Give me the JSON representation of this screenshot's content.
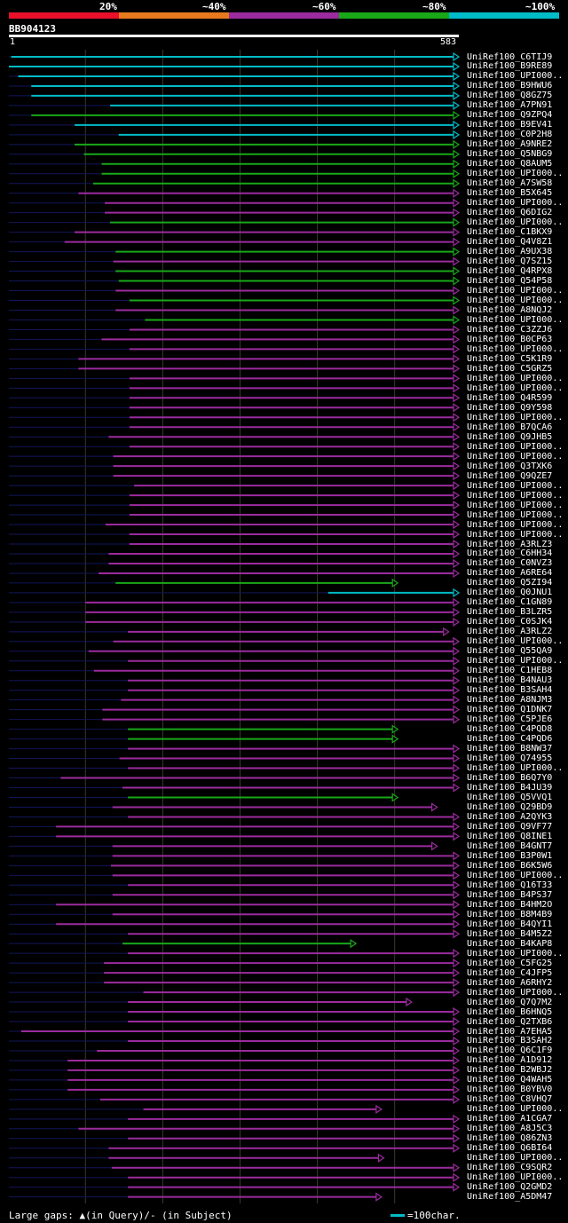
{
  "legend": {
    "labels": [
      "20%",
      "~40%",
      "~60%",
      "~80%",
      "~100%"
    ],
    "colors": [
      "#e8102a",
      "#e87a1e",
      "#9b2b9e",
      "#18a818",
      "#00bcc8"
    ]
  },
  "query": {
    "name": "BB904123",
    "start": "1",
    "end": "583"
  },
  "footer": {
    "gaps_text": "Large gaps: ▲(in Query)/- (in Subject)",
    "scale_text": "=100char."
  },
  "chart_data": {
    "type": "alignment_overview",
    "query_length": 583,
    "hits": [
      {
        "name": "UniRef100_C6TIJ9",
        "start": 4,
        "end": 583,
        "color": "#00bcc8"
      },
      {
        "name": "UniRef100_B9RE89",
        "start": 1,
        "end": 583,
        "color": "#00bcc8"
      },
      {
        "name": "UniRef100_UPI000..",
        "start": 13,
        "end": 583,
        "color": "#00bcc8"
      },
      {
        "name": "UniRef100_B9HWU6",
        "start": 30,
        "end": 583,
        "color": "#00bcc8"
      },
      {
        "name": "UniRef100_Q8GZ75",
        "start": 30,
        "end": 583,
        "color": "#00bcc8"
      },
      {
        "name": "UniRef100_A7PN91",
        "start": 132,
        "end": 583,
        "color": "#00bcc8"
      },
      {
        "name": "UniRef100_Q9ZPQ4",
        "start": 30,
        "end": 583,
        "color": "#18a818"
      },
      {
        "name": "UniRef100_B9EV41",
        "start": 86,
        "end": 583,
        "color": "#00bcc8"
      },
      {
        "name": "UniRef100_C0P2H8",
        "start": 143,
        "end": 583,
        "color": "#00bcc8"
      },
      {
        "name": "UniRef100_A9NRE2",
        "start": 86,
        "end": 583,
        "color": "#18a818"
      },
      {
        "name": "UniRef100_Q5NBG9",
        "start": 98,
        "end": 583,
        "color": "#18a818"
      },
      {
        "name": "UniRef100_Q8AUM5",
        "start": 121,
        "end": 583,
        "color": "#18a818"
      },
      {
        "name": "UniRef100_UPI000..",
        "start": 121,
        "end": 583,
        "color": "#18a818"
      },
      {
        "name": "UniRef100_A7SW58",
        "start": 110,
        "end": 583,
        "color": "#18a818"
      },
      {
        "name": "UniRef100_B5X645",
        "start": 91,
        "end": 583,
        "color": "#9b2b9e"
      },
      {
        "name": "UniRef100_UPI000..",
        "start": 125,
        "end": 583,
        "color": "#9b2b9e"
      },
      {
        "name": "UniRef100_Q6DIG2",
        "start": 125,
        "end": 583,
        "color": "#9b2b9e"
      },
      {
        "name": "UniRef100_UPI000..",
        "start": 132,
        "end": 583,
        "color": "#18a818"
      },
      {
        "name": "UniRef100_C1BKX9",
        "start": 86,
        "end": 583,
        "color": "#9b2b9e"
      },
      {
        "name": "UniRef100_Q4V8Z1",
        "start": 73,
        "end": 583,
        "color": "#9b2b9e"
      },
      {
        "name": "UniRef100_A9UX38",
        "start": 139,
        "end": 583,
        "color": "#18a818"
      },
      {
        "name": "UniRef100_Q7SZ15",
        "start": 136,
        "end": 583,
        "color": "#9b2b9e"
      },
      {
        "name": "UniRef100_Q4RPX8",
        "start": 139,
        "end": 583,
        "color": "#18a818"
      },
      {
        "name": "UniRef100_Q54P58",
        "start": 143,
        "end": 583,
        "color": "#18a818"
      },
      {
        "name": "UniRef100_UPI000..",
        "start": 139,
        "end": 583,
        "color": "#9b2b9e"
      },
      {
        "name": "UniRef100_UPI000..",
        "start": 157,
        "end": 583,
        "color": "#18a818"
      },
      {
        "name": "UniRef100_A8NQJ2",
        "start": 139,
        "end": 583,
        "color": "#9b2b9e"
      },
      {
        "name": "UniRef100_UPI000..",
        "start": 177,
        "end": 583,
        "color": "#18a818"
      },
      {
        "name": "UniRef100_C3ZZJ6",
        "start": 157,
        "end": 583,
        "color": "#9b2b9e"
      },
      {
        "name": "UniRef100_B0CP63",
        "start": 121,
        "end": 583,
        "color": "#9b2b9e"
      },
      {
        "name": "UniRef100_UPI000..",
        "start": 157,
        "end": 583,
        "color": "#9b2b9e"
      },
      {
        "name": "UniRef100_C5K1R9",
        "start": 91,
        "end": 583,
        "color": "#9b2b9e"
      },
      {
        "name": "UniRef100_C5GRZ5",
        "start": 91,
        "end": 583,
        "color": "#9b2b9e"
      },
      {
        "name": "UniRef100_UPI000..",
        "start": 157,
        "end": 583,
        "color": "#9b2b9e"
      },
      {
        "name": "UniRef100_UPI000..",
        "start": 157,
        "end": 583,
        "color": "#9b2b9e"
      },
      {
        "name": "UniRef100_Q4R599",
        "start": 157,
        "end": 583,
        "color": "#9b2b9e"
      },
      {
        "name": "UniRef100_Q9Y598",
        "start": 157,
        "end": 583,
        "color": "#9b2b9e"
      },
      {
        "name": "UniRef100_UPI000..",
        "start": 157,
        "end": 583,
        "color": "#9b2b9e"
      },
      {
        "name": "UniRef100_B7QCA6",
        "start": 157,
        "end": 583,
        "color": "#9b2b9e"
      },
      {
        "name": "UniRef100_Q9JHB5",
        "start": 130,
        "end": 583,
        "color": "#9b2b9e"
      },
      {
        "name": "UniRef100_UPI000..",
        "start": 157,
        "end": 583,
        "color": "#9b2b9e"
      },
      {
        "name": "UniRef100_UPI000..",
        "start": 136,
        "end": 583,
        "color": "#9b2b9e"
      },
      {
        "name": "UniRef100_Q3TXK6",
        "start": 136,
        "end": 583,
        "color": "#9b2b9e"
      },
      {
        "name": "UniRef100_Q9QZE7",
        "start": 136,
        "end": 583,
        "color": "#9b2b9e"
      },
      {
        "name": "UniRef100_UPI000..",
        "start": 163,
        "end": 583,
        "color": "#9b2b9e"
      },
      {
        "name": "UniRef100_UPI000..",
        "start": 157,
        "end": 583,
        "color": "#9b2b9e"
      },
      {
        "name": "UniRef100_UPI000..",
        "start": 157,
        "end": 583,
        "color": "#9b2b9e"
      },
      {
        "name": "UniRef100_UPI000..",
        "start": 157,
        "end": 583,
        "color": "#9b2b9e"
      },
      {
        "name": "UniRef100_UPI000..",
        "start": 126,
        "end": 583,
        "color": "#9b2b9e"
      },
      {
        "name": "UniRef100_UPI000..",
        "start": 157,
        "end": 583,
        "color": "#9b2b9e"
      },
      {
        "name": "UniRef100_A3RLZ3",
        "start": 157,
        "end": 583,
        "color": "#9b2b9e"
      },
      {
        "name": "UniRef100_C6HH34",
        "start": 130,
        "end": 583,
        "color": "#9b2b9e"
      },
      {
        "name": "UniRef100_C0NVZ3",
        "start": 130,
        "end": 583,
        "color": "#9b2b9e"
      },
      {
        "name": "UniRef100_A6RE64",
        "start": 117,
        "end": 583,
        "color": "#9b2b9e"
      },
      {
        "name": "UniRef100_Q5ZI94",
        "start": 139,
        "end": 504,
        "color": "#18a818"
      },
      {
        "name": "UniRef100_Q0JNU1",
        "start": 414,
        "end": 583,
        "color": "#00bcc8"
      },
      {
        "name": "UniRef100_C1GN89",
        "start": 100,
        "end": 583,
        "color": "#9b2b9e"
      },
      {
        "name": "UniRef100_B3LZR5",
        "start": 100,
        "end": 583,
        "color": "#9b2b9e"
      },
      {
        "name": "UniRef100_C0SJK4",
        "start": 100,
        "end": 583,
        "color": "#9b2b9e"
      },
      {
        "name": "UniRef100_A3RLZ2",
        "start": 155,
        "end": 570,
        "color": "#9b2b9e"
      },
      {
        "name": "UniRef100_UPI000..",
        "start": 136,
        "end": 583,
        "color": "#9b2b9e"
      },
      {
        "name": "UniRef100_Q55QA9",
        "start": 104,
        "end": 583,
        "color": "#9b2b9e"
      },
      {
        "name": "UniRef100_UPI000..",
        "start": 155,
        "end": 583,
        "color": "#9b2b9e"
      },
      {
        "name": "UniRef100_C1HEB8",
        "start": 111,
        "end": 583,
        "color": "#9b2b9e"
      },
      {
        "name": "UniRef100_B4NAU3",
        "start": 155,
        "end": 583,
        "color": "#9b2b9e"
      },
      {
        "name": "UniRef100_B3SAH4",
        "start": 155,
        "end": 583,
        "color": "#9b2b9e"
      },
      {
        "name": "UniRef100_A8NJM3",
        "start": 146,
        "end": 583,
        "color": "#9b2b9e"
      },
      {
        "name": "UniRef100_Q1DNK7",
        "start": 122,
        "end": 583,
        "color": "#9b2b9e"
      },
      {
        "name": "UniRef100_C5PJE6",
        "start": 122,
        "end": 583,
        "color": "#9b2b9e"
      },
      {
        "name": "UniRef100_C4PQD8",
        "start": 155,
        "end": 504,
        "color": "#18a818"
      },
      {
        "name": "UniRef100_C4PQD6",
        "start": 155,
        "end": 504,
        "color": "#18a818"
      },
      {
        "name": "UniRef100_B8NW37",
        "start": 155,
        "end": 583,
        "color": "#9b2b9e"
      },
      {
        "name": "UniRef100_Q74955",
        "start": 144,
        "end": 583,
        "color": "#9b2b9e"
      },
      {
        "name": "UniRef100_UPI000..",
        "start": 155,
        "end": 583,
        "color": "#9b2b9e"
      },
      {
        "name": "UniRef100_B6Q7Y0",
        "start": 68,
        "end": 583,
        "color": "#9b2b9e"
      },
      {
        "name": "UniRef100_B4JU39",
        "start": 148,
        "end": 583,
        "color": "#9b2b9e"
      },
      {
        "name": "UniRef100_Q5VVQ1",
        "start": 155,
        "end": 504,
        "color": "#18a818"
      },
      {
        "name": "UniRef100_Q29BD9",
        "start": 135,
        "end": 555,
        "color": "#9b2b9e"
      },
      {
        "name": "UniRef100_A2QYK3",
        "start": 155,
        "end": 583,
        "color": "#9b2b9e"
      },
      {
        "name": "UniRef100_Q9VF77",
        "start": 62,
        "end": 583,
        "color": "#9b2b9e"
      },
      {
        "name": "UniRef100_Q8INE1",
        "start": 62,
        "end": 583,
        "color": "#9b2b9e"
      },
      {
        "name": "UniRef100_B4GNT7",
        "start": 135,
        "end": 555,
        "color": "#9b2b9e"
      },
      {
        "name": "UniRef100_B3P0W1",
        "start": 135,
        "end": 583,
        "color": "#9b2b9e"
      },
      {
        "name": "UniRef100_B6K5W6",
        "start": 133,
        "end": 583,
        "color": "#9b2b9e"
      },
      {
        "name": "UniRef100_UPI000..",
        "start": 135,
        "end": 583,
        "color": "#9b2b9e"
      },
      {
        "name": "UniRef100_Q16T33",
        "start": 155,
        "end": 583,
        "color": "#9b2b9e"
      },
      {
        "name": "UniRef100_B4PS37",
        "start": 135,
        "end": 583,
        "color": "#9b2b9e"
      },
      {
        "name": "UniRef100_B4HM2O",
        "start": 62,
        "end": 583,
        "color": "#9b2b9e"
      },
      {
        "name": "UniRef100_B8M4B9",
        "start": 135,
        "end": 583,
        "color": "#9b2b9e"
      },
      {
        "name": "UniRef100_B4QYI1",
        "start": 62,
        "end": 583,
        "color": "#9b2b9e"
      },
      {
        "name": "UniRef100_B4M5Z2",
        "start": 155,
        "end": 583,
        "color": "#9b2b9e"
      },
      {
        "name": "UniRef100_B4KAP8",
        "start": 148,
        "end": 450,
        "color": "#18a818"
      },
      {
        "name": "UniRef100_UPI000..",
        "start": 155,
        "end": 583,
        "color": "#9b2b9e"
      },
      {
        "name": "UniRef100_C5FG25",
        "start": 124,
        "end": 583,
        "color": "#9b2b9e"
      },
      {
        "name": "UniRef100_C4JFP5",
        "start": 124,
        "end": 583,
        "color": "#9b2b9e"
      },
      {
        "name": "UniRef100_A6RHY2",
        "start": 124,
        "end": 583,
        "color": "#9b2b9e"
      },
      {
        "name": "UniRef100_UPI000..",
        "start": 175,
        "end": 583,
        "color": "#9b2b9e"
      },
      {
        "name": "UniRef100_Q7Q7M2",
        "start": 155,
        "end": 522,
        "color": "#9b2b9e"
      },
      {
        "name": "UniRef100_B6HNQ5",
        "start": 155,
        "end": 583,
        "color": "#9b2b9e"
      },
      {
        "name": "UniRef100_Q2TXB6",
        "start": 155,
        "end": 583,
        "color": "#9b2b9e"
      },
      {
        "name": "UniRef100_A7EHA5",
        "start": 17,
        "end": 583,
        "color": "#9b2b9e"
      },
      {
        "name": "UniRef100_B3SAH2",
        "start": 155,
        "end": 583,
        "color": "#9b2b9e"
      },
      {
        "name": "UniRef100_Q6C1F9",
        "start": 115,
        "end": 583,
        "color": "#9b2b9e"
      },
      {
        "name": "UniRef100_A1D912",
        "start": 77,
        "end": 583,
        "color": "#9b2b9e"
      },
      {
        "name": "UniRef100_B2WBJ2",
        "start": 77,
        "end": 583,
        "color": "#9b2b9e"
      },
      {
        "name": "UniRef100_Q4WAH5",
        "start": 77,
        "end": 583,
        "color": "#9b2b9e"
      },
      {
        "name": "UniRef100_B0YBV0",
        "start": 77,
        "end": 583,
        "color": "#9b2b9e"
      },
      {
        "name": "UniRef100_C8VHQ7",
        "start": 119,
        "end": 583,
        "color": "#9b2b9e"
      },
      {
        "name": "UniRef100_UPI000..",
        "start": 175,
        "end": 483,
        "color": "#9b2b9e"
      },
      {
        "name": "UniRef100_A1CGA7",
        "start": 155,
        "end": 583,
        "color": "#9b2b9e"
      },
      {
        "name": "UniRef100_A8J5C3",
        "start": 91,
        "end": 583,
        "color": "#9b2b9e"
      },
      {
        "name": "UniRef100_Q86ZN3",
        "start": 155,
        "end": 583,
        "color": "#9b2b9e"
      },
      {
        "name": "UniRef100_Q6BI64",
        "start": 130,
        "end": 583,
        "color": "#9b2b9e"
      },
      {
        "name": "UniRef100_UPI000..",
        "start": 130,
        "end": 486,
        "color": "#9b2b9e"
      },
      {
        "name": "UniRef100_C9SQR2",
        "start": 134,
        "end": 583,
        "color": "#9b2b9e"
      },
      {
        "name": "UniRef100_UPI000..",
        "start": 155,
        "end": 583,
        "color": "#9b2b9e"
      },
      {
        "name": "UniRef100_Q2GMD2",
        "start": 155,
        "end": 583,
        "color": "#9b2b9e"
      },
      {
        "name": "UniRef100_A5DM47",
        "start": 155,
        "end": 483,
        "color": "#9b2b9e"
      }
    ]
  }
}
